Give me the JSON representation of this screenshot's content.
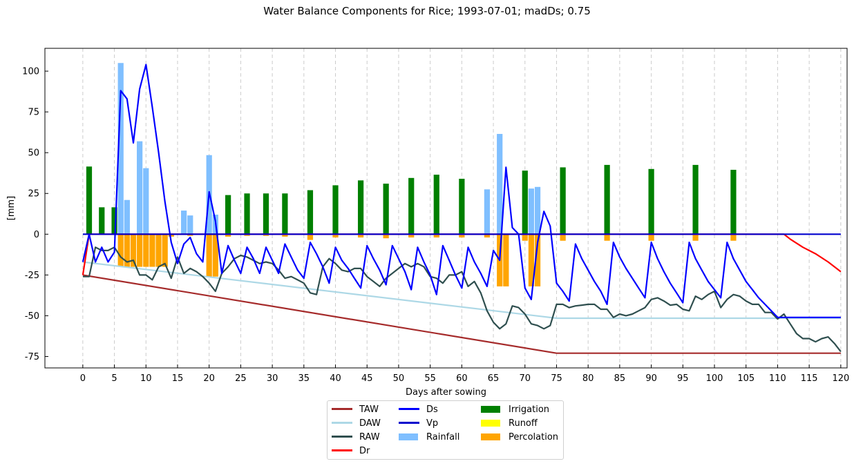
{
  "chart_data": {
    "type": "line",
    "title": "Water Balance Components for Rice; 1993-07-01; madDs; 0.75",
    "xlabel": "Days after sowing",
    "ylabel": "[mm]",
    "xlim": [
      -6,
      121
    ],
    "ylim": [
      -82,
      114
    ],
    "xticks": [
      0,
      5,
      10,
      15,
      20,
      25,
      30,
      35,
      40,
      45,
      50,
      55,
      60,
      65,
      70,
      75,
      80,
      85,
      90,
      95,
      100,
      105,
      110,
      115,
      120
    ],
    "yticks": [
      -75,
      -50,
      -25,
      0,
      25,
      50,
      75,
      100
    ],
    "grid": "vertical dashed at x ticks",
    "legend_position": "below plot, centered, 3 columns",
    "colors": {
      "TAW": "#a52a2a",
      "DAW": "#add8e6",
      "RAW": "#2f4f4f",
      "Dr": "#ff0000",
      "Ds": "#0000ff",
      "Vp": "#0000cd",
      "Rainfall": "#7fbfff",
      "Irrigation": "#008000",
      "Runoff": "#ffff00",
      "Percolation": "#ffa500"
    },
    "series": [
      {
        "name": "TAW",
        "type": "line",
        "points": [
          [
            0,
            -25
          ],
          [
            75,
            -73
          ],
          [
            120,
            -73
          ]
        ]
      },
      {
        "name": "DAW",
        "type": "line",
        "points": [
          [
            0,
            -17
          ],
          [
            75,
            -51.5
          ],
          [
            120,
            -51.5
          ]
        ]
      },
      {
        "name": "RAW",
        "type": "line",
        "points": [
          [
            0,
            -26
          ],
          [
            1,
            -26
          ],
          [
            2,
            -8
          ],
          [
            3,
            -10
          ],
          [
            4,
            -10
          ],
          [
            5,
            -8
          ],
          [
            6,
            -14
          ],
          [
            7,
            -17
          ],
          [
            8,
            -16
          ],
          [
            9,
            -25
          ],
          [
            10,
            -25
          ],
          [
            11,
            -28
          ],
          [
            12,
            -20
          ],
          [
            13,
            -18
          ],
          [
            14,
            -27
          ],
          [
            15,
            -14
          ],
          [
            16,
            -24
          ],
          [
            17,
            -21
          ],
          [
            18,
            -23
          ],
          [
            19,
            -26
          ],
          [
            20,
            -30
          ],
          [
            21,
            -35
          ],
          [
            22,
            -24
          ],
          [
            23,
            -20
          ],
          [
            24,
            -15
          ],
          [
            25,
            -13
          ],
          [
            26,
            -14
          ],
          [
            27,
            -16
          ],
          [
            28,
            -18
          ],
          [
            29,
            -17
          ],
          [
            30,
            -18
          ],
          [
            31,
            -22
          ],
          [
            32,
            -27
          ],
          [
            33,
            -26
          ],
          [
            34,
            -28
          ],
          [
            35,
            -30
          ],
          [
            36,
            -36
          ],
          [
            37,
            -37
          ],
          [
            38,
            -20
          ],
          [
            39,
            -15
          ],
          [
            40,
            -18
          ],
          [
            41,
            -22
          ],
          [
            42,
            -23
          ],
          [
            43,
            -21
          ],
          [
            44,
            -21
          ],
          [
            45,
            -26
          ],
          [
            46,
            -29
          ],
          [
            47,
            -32
          ],
          [
            48,
            -27
          ],
          [
            49,
            -24
          ],
          [
            50,
            -21
          ],
          [
            51,
            -18
          ],
          [
            52,
            -20
          ],
          [
            53,
            -18
          ],
          [
            54,
            -20
          ],
          [
            55,
            -26
          ],
          [
            56,
            -27
          ],
          [
            57,
            -30
          ],
          [
            58,
            -25
          ],
          [
            59,
            -25
          ],
          [
            60,
            -23
          ],
          [
            61,
            -32
          ],
          [
            62,
            -29
          ],
          [
            63,
            -36
          ],
          [
            64,
            -47
          ],
          [
            65,
            -54
          ],
          [
            66,
            -58
          ],
          [
            67,
            -55
          ],
          [
            68,
            -44
          ],
          [
            69,
            -45
          ],
          [
            70,
            -49
          ],
          [
            71,
            -55
          ],
          [
            72,
            -56
          ],
          [
            73,
            -58
          ],
          [
            74,
            -56
          ],
          [
            75,
            -43
          ],
          [
            76,
            -43
          ],
          [
            77,
            -45
          ],
          [
            78,
            -44
          ],
          [
            79,
            -43.5
          ],
          [
            80,
            -43
          ],
          [
            81,
            -43
          ],
          [
            82,
            -46
          ],
          [
            83,
            -46
          ],
          [
            84,
            -51
          ],
          [
            85,
            -49
          ],
          [
            86,
            -50
          ],
          [
            87,
            -49
          ],
          [
            88,
            -47
          ],
          [
            89,
            -45
          ],
          [
            90,
            -40
          ],
          [
            91,
            -39
          ],
          [
            92,
            -41
          ],
          [
            93,
            -43.5
          ],
          [
            94,
            -43
          ],
          [
            95,
            -46
          ],
          [
            96,
            -47
          ],
          [
            97,
            -38
          ],
          [
            98,
            -40
          ],
          [
            99,
            -37
          ],
          [
            100,
            -35
          ],
          [
            101,
            -45
          ],
          [
            102,
            -40
          ],
          [
            103,
            -37
          ],
          [
            104,
            -38
          ],
          [
            105,
            -41
          ],
          [
            106,
            -43
          ],
          [
            107,
            -43
          ],
          [
            108,
            -48
          ],
          [
            109,
            -48
          ],
          [
            110,
            -52
          ],
          [
            111,
            -49
          ],
          [
            112,
            -55
          ],
          [
            113,
            -61
          ],
          [
            114,
            -64
          ],
          [
            115,
            -64
          ],
          [
            116,
            -66
          ],
          [
            117,
            -64
          ],
          [
            118,
            -63
          ],
          [
            119,
            -67
          ],
          [
            120,
            -72
          ]
        ]
      },
      {
        "name": "Dr",
        "type": "line",
        "points": [
          [
            0,
            -25
          ],
          [
            1,
            0
          ],
          [
            111,
            0
          ],
          [
            112,
            -3
          ],
          [
            114,
            -8
          ],
          [
            116,
            -12
          ],
          [
            118,
            -17
          ],
          [
            119,
            -20
          ],
          [
            120,
            -23
          ]
        ]
      },
      {
        "name": "Ds",
        "type": "line",
        "points": [
          [
            0,
            -17
          ],
          [
            1,
            0
          ],
          [
            2,
            -17
          ],
          [
            3,
            -8
          ],
          [
            4,
            -17
          ],
          [
            5,
            -11
          ],
          [
            6,
            88
          ],
          [
            7,
            83
          ],
          [
            8,
            56
          ],
          [
            9,
            89
          ],
          [
            10,
            104
          ],
          [
            11,
            78
          ],
          [
            12,
            50
          ],
          [
            13,
            20
          ],
          [
            14,
            -5
          ],
          [
            15,
            -18
          ],
          [
            16,
            -6
          ],
          [
            17,
            -2
          ],
          [
            18,
            -12
          ],
          [
            19,
            -17
          ],
          [
            20,
            26
          ],
          [
            21,
            8
          ],
          [
            22,
            -24
          ],
          [
            23,
            -7
          ],
          [
            24,
            -16
          ],
          [
            25,
            -24
          ],
          [
            26,
            -8
          ],
          [
            27,
            -15
          ],
          [
            28,
            -24
          ],
          [
            29,
            -8
          ],
          [
            30,
            -16
          ],
          [
            31,
            -24
          ],
          [
            32,
            -6
          ],
          [
            33,
            -14
          ],
          [
            34,
            -22
          ],
          [
            35,
            -27
          ],
          [
            36,
            -5
          ],
          [
            37,
            -12
          ],
          [
            38,
            -20
          ],
          [
            39,
            -30
          ],
          [
            40,
            -8
          ],
          [
            41,
            -16
          ],
          [
            42,
            -21
          ],
          [
            43,
            -27
          ],
          [
            44,
            -33
          ],
          [
            45,
            -7
          ],
          [
            46,
            -15
          ],
          [
            47,
            -22
          ],
          [
            48,
            -31
          ],
          [
            49,
            -7
          ],
          [
            50,
            -15
          ],
          [
            51,
            -23
          ],
          [
            52,
            -34
          ],
          [
            53,
            -8
          ],
          [
            54,
            -17
          ],
          [
            55,
            -25
          ],
          [
            56,
            -37
          ],
          [
            57,
            -7
          ],
          [
            58,
            -16
          ],
          [
            59,
            -25
          ],
          [
            60,
            -33
          ],
          [
            61,
            -8
          ],
          [
            62,
            -17
          ],
          [
            63,
            -24
          ],
          [
            64,
            -32
          ],
          [
            65,
            -10
          ],
          [
            66,
            -16
          ],
          [
            67,
            41
          ],
          [
            68,
            4
          ],
          [
            69,
            0
          ],
          [
            70,
            -33
          ],
          [
            71,
            -40
          ],
          [
            72,
            -5
          ],
          [
            73,
            14
          ],
          [
            74,
            5
          ],
          [
            75,
            -30
          ],
          [
            76,
            -35
          ],
          [
            77,
            -41
          ],
          [
            78,
            -6
          ],
          [
            79,
            -15
          ],
          [
            80,
            -22
          ],
          [
            81,
            -29
          ],
          [
            82,
            -35
          ],
          [
            83,
            -43
          ],
          [
            84,
            -5
          ],
          [
            85,
            -14
          ],
          [
            86,
            -21
          ],
          [
            87,
            -27
          ],
          [
            88,
            -33
          ],
          [
            89,
            -39
          ],
          [
            90,
            -5
          ],
          [
            91,
            -15
          ],
          [
            92,
            -23
          ],
          [
            93,
            -30
          ],
          [
            94,
            -36
          ],
          [
            95,
            -42
          ],
          [
            96,
            -5
          ],
          [
            97,
            -15
          ],
          [
            98,
            -22
          ],
          [
            99,
            -29
          ],
          [
            100,
            -34
          ],
          [
            101,
            -39
          ],
          [
            102,
            -5
          ],
          [
            103,
            -15
          ],
          [
            104,
            -22
          ],
          [
            105,
            -29
          ],
          [
            106,
            -34
          ],
          [
            107,
            -39
          ],
          [
            108,
            -43
          ],
          [
            109,
            -47
          ],
          [
            110,
            -51
          ],
          [
            120,
            -51
          ]
        ]
      },
      {
        "name": "Vp",
        "type": "line",
        "points": [
          [
            0,
            0
          ],
          [
            120,
            0
          ]
        ]
      }
    ],
    "bars": {
      "Irrigation": [
        [
          1,
          41.5
        ],
        [
          3,
          16.5
        ],
        [
          5,
          16.5
        ],
        [
          23,
          24
        ],
        [
          26,
          25
        ],
        [
          29,
          25
        ],
        [
          32,
          25
        ],
        [
          36,
          27
        ],
        [
          40,
          30
        ],
        [
          44,
          33
        ],
        [
          48,
          31
        ],
        [
          52,
          34.5
        ],
        [
          56,
          36.5
        ],
        [
          60,
          34
        ],
        [
          70,
          39
        ],
        [
          76,
          41
        ],
        [
          83,
          42.5
        ],
        [
          90,
          40
        ],
        [
          97,
          42.5
        ],
        [
          103,
          39.5
        ]
      ],
      "Rainfall": [
        [
          6,
          105
        ],
        [
          7,
          21
        ],
        [
          9,
          57
        ],
        [
          10,
          40.5
        ],
        [
          16,
          14.5
        ],
        [
          17,
          11.5
        ],
        [
          20,
          48.5
        ],
        [
          21,
          12
        ],
        [
          64,
          27.5
        ],
        [
          66,
          61.5
        ],
        [
          71,
          28
        ],
        [
          72,
          29
        ]
      ],
      "Runoff": [],
      "Percolation": [
        [
          6,
          -20
        ],
        [
          7,
          -20
        ],
        [
          8,
          -20
        ],
        [
          9,
          -20
        ],
        [
          10,
          -20
        ],
        [
          11,
          -20
        ],
        [
          12,
          -20
        ],
        [
          13,
          -20
        ],
        [
          14,
          -1.5
        ],
        [
          17,
          -1
        ],
        [
          20,
          -26
        ],
        [
          21,
          -26
        ],
        [
          23,
          -1.5
        ],
        [
          26,
          -1
        ],
        [
          29,
          -1
        ],
        [
          32,
          -1.5
        ],
        [
          36,
          -3.5
        ],
        [
          40,
          -2
        ],
        [
          44,
          -2
        ],
        [
          48,
          -2.5
        ],
        [
          52,
          -2
        ],
        [
          56,
          -2
        ],
        [
          60,
          -2
        ],
        [
          64,
          -2
        ],
        [
          66,
          -32
        ],
        [
          67,
          -32
        ],
        [
          70,
          -4
        ],
        [
          71,
          -32
        ],
        [
          72,
          -32
        ],
        [
          76,
          -4
        ],
        [
          83,
          -4
        ],
        [
          90,
          -4
        ],
        [
          97,
          -4
        ],
        [
          103,
          -4
        ]
      ]
    },
    "legend": [
      "TAW",
      "DAW",
      "RAW",
      "Dr",
      "Ds",
      "Vp",
      "Rainfall",
      "Irrigation",
      "Runoff",
      "Percolation"
    ]
  }
}
